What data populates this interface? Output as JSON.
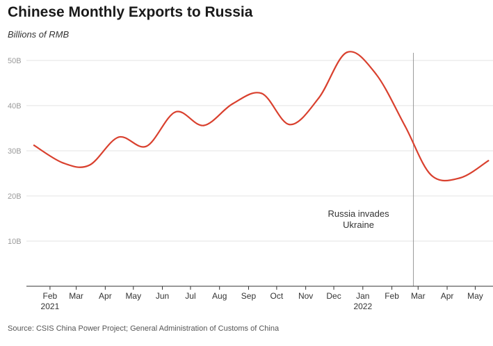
{
  "header": {
    "title": "Chinese Monthly Exports to Russia",
    "subtitle": "Billions of RMB"
  },
  "footer": {
    "source": "Source: CSIS China Power Project; General Administration of Customs of China"
  },
  "chart_data": {
    "type": "line",
    "title": "Chinese Monthly Exports to Russia",
    "subtitle": "Billions of RMB",
    "xlabel": "",
    "ylabel": "",
    "ylim": [
      0,
      52
    ],
    "yticks": [
      10,
      20,
      30,
      40,
      50
    ],
    "ytick_labels": [
      "10B",
      "20B",
      "30B",
      "40B",
      "50B"
    ],
    "xticks": [
      {
        "label": "Feb",
        "sub": "2021",
        "x": "2021-02"
      },
      {
        "label": "Mar",
        "sub": "",
        "x": "2021-03"
      },
      {
        "label": "Apr",
        "sub": "",
        "x": "2021-04"
      },
      {
        "label": "May",
        "sub": "",
        "x": "2021-05"
      },
      {
        "label": "Jun",
        "sub": "",
        "x": "2021-06"
      },
      {
        "label": "Jul",
        "sub": "",
        "x": "2021-07"
      },
      {
        "label": "Aug",
        "sub": "",
        "x": "2021-08"
      },
      {
        "label": "Sep",
        "sub": "",
        "x": "2021-09"
      },
      {
        "label": "Oct",
        "sub": "",
        "x": "2021-10"
      },
      {
        "label": "Nov",
        "sub": "",
        "x": "2021-11"
      },
      {
        "label": "Dec",
        "sub": "",
        "x": "2021-12"
      },
      {
        "label": "Jan",
        "sub": "2022",
        "x": "2022-01"
      },
      {
        "label": "Feb",
        "sub": "",
        "x": "2022-02"
      },
      {
        "label": "Mar",
        "sub": "",
        "x": "2022-03"
      },
      {
        "label": "Apr",
        "sub": "",
        "x": "2022-04"
      },
      {
        "label": "May",
        "sub": "",
        "x": "2022-05"
      }
    ],
    "grid": true,
    "series": [
      {
        "color": "#d9402e",
        "points": [
          {
            "x": "2021-01-15",
            "y": 31.2
          },
          {
            "x": "2021-02-15",
            "y": 27.3
          },
          {
            "x": "2021-03-15",
            "y": 26.8
          },
          {
            "x": "2021-04-15",
            "y": 33.0
          },
          {
            "x": "2021-05-15",
            "y": 31.0
          },
          {
            "x": "2021-06-15",
            "y": 38.6
          },
          {
            "x": "2021-07-15",
            "y": 35.6
          },
          {
            "x": "2021-08-15",
            "y": 40.4
          },
          {
            "x": "2021-09-15",
            "y": 42.7
          },
          {
            "x": "2021-10-15",
            "y": 35.8
          },
          {
            "x": "2021-11-15",
            "y": 41.7
          },
          {
            "x": "2021-12-15",
            "y": 51.8
          },
          {
            "x": "2022-01-15",
            "y": 47.0
          },
          {
            "x": "2022-02-15",
            "y": 35.5
          },
          {
            "x": "2022-03-15",
            "y": 24.6
          },
          {
            "x": "2022-04-15",
            "y": 24.0
          },
          {
            "x": "2022-05-15",
            "y": 27.8
          }
        ]
      }
    ],
    "annotations": [
      {
        "x": "2022-02-24",
        "lines": [
          "Russia invades",
          "Ukraine"
        ]
      }
    ]
  }
}
